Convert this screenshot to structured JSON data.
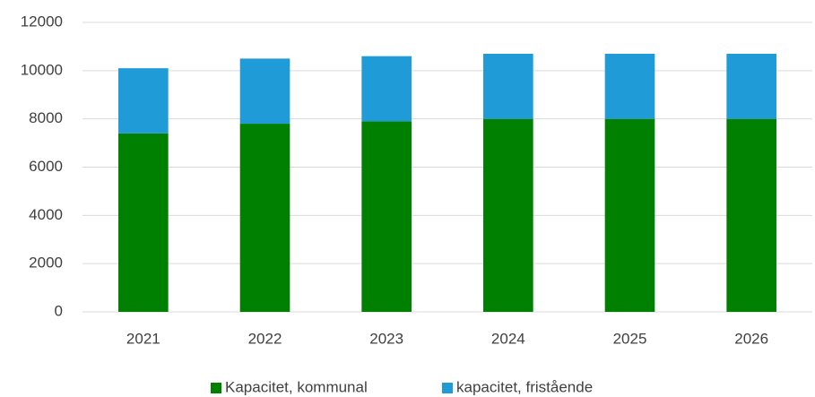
{
  "chart_data": {
    "type": "stacked_bar",
    "categories": [
      "2021",
      "2022",
      "2023",
      "2024",
      "2025",
      "2026"
    ],
    "series": [
      {
        "name": "Kapacitet, kommunal",
        "color": "#008000",
        "values": [
          7400,
          7800,
          7900,
          8000,
          8000,
          8000
        ]
      },
      {
        "name": "kapacitet, fristående",
        "color": "#1f9bd8",
        "values": [
          2700,
          2700,
          2700,
          2700,
          2700,
          2700
        ]
      }
    ],
    "ylim": [
      0,
      12000
    ],
    "yticks": [
      0,
      2000,
      4000,
      6000,
      8000,
      10000,
      12000
    ],
    "grid": true,
    "legend": "bottom"
  }
}
